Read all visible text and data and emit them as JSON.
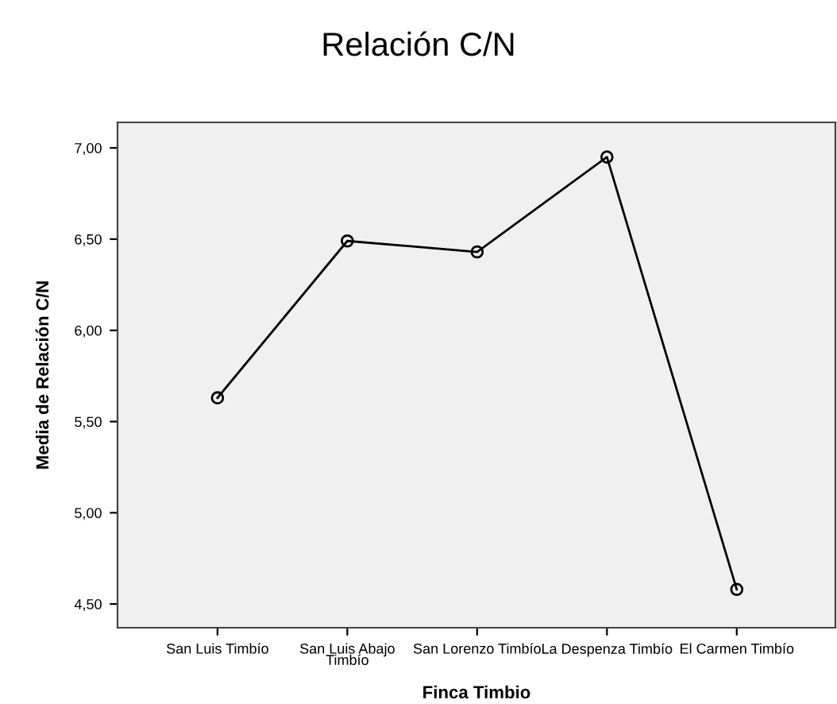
{
  "chart_data": {
    "type": "line",
    "title": "Relación C/N",
    "xlabel": "Finca Timbio",
    "ylabel": "Media de Relación C/N",
    "categories": [
      "San Luis Timbío",
      "San Luis Abajo\nTimbío",
      "San Lorenzo Timbío",
      "La Despenza Timbío",
      "El Carmen Timbío"
    ],
    "series": [
      {
        "color": "#000000",
        "values": [
          5.63,
          6.49,
          6.43,
          6.95,
          4.58
        ]
      }
    ],
    "ylim": [
      4.37,
      7.14
    ],
    "yticks": [
      {
        "value": 4.5,
        "label": "4,50"
      },
      {
        "value": 5.0,
        "label": "5,00"
      },
      {
        "value": 5.5,
        "label": "5,50"
      },
      {
        "value": 6.0,
        "label": "6,00"
      },
      {
        "value": 6.5,
        "label": "6,50"
      },
      {
        "value": 7.0,
        "label": "7,00"
      }
    ],
    "marker": "circle",
    "line_style": "solid",
    "grid": false,
    "legend": false
  }
}
